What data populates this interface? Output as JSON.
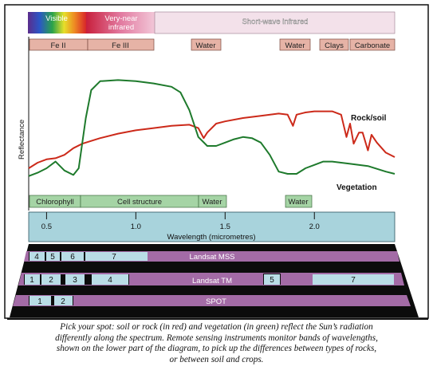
{
  "spectrum_header": {
    "regions": [
      {
        "label": "Visible"
      },
      {
        "label_lines": [
          "Very-near",
          "infrared"
        ]
      },
      {
        "label": "Short-wave infrared"
      }
    ]
  },
  "absorption_features_top": [
    "Fe II",
    "Fe III",
    "Water",
    "Water",
    "Clays",
    "Carbonate"
  ],
  "absorption_features_bottom": [
    "Chlorophyll",
    "Cell structure",
    "Water",
    "Water"
  ],
  "colors": {
    "rock_soil": "#cc2a1a",
    "vegetation": "#1e7a2c",
    "feature_box_top": "#e6b3a6",
    "feature_box_bottom": "#a5d4a5",
    "axis_band": "#a8d3dc",
    "sensor_band": "#a36ba6",
    "sensor_box": "#b9dde6"
  },
  "chart_data": {
    "type": "line",
    "title": "",
    "xlabel": "Wavelength (micrometres)",
    "ylabel": "Reflectance",
    "xlim": [
      0.4,
      2.45
    ],
    "ylim": [
      0,
      1
    ],
    "x_ticks": [
      0.5,
      1.0,
      1.5,
      2.0
    ],
    "x_tick_labels": [
      "0.5",
      "1.0",
      "1.5",
      "2.0"
    ],
    "grid": false,
    "series": [
      {
        "name": "Rock/soil",
        "x": [
          0.4,
          0.45,
          0.5,
          0.55,
          0.6,
          0.65,
          0.7,
          0.8,
          0.9,
          1.0,
          1.1,
          1.2,
          1.3,
          1.35,
          1.38,
          1.4,
          1.45,
          1.5,
          1.6,
          1.7,
          1.8,
          1.85,
          1.88,
          1.9,
          1.95,
          2.0,
          2.1,
          2.15,
          2.18,
          2.2,
          2.22,
          2.25,
          2.27,
          2.3,
          2.32,
          2.35,
          2.4,
          2.45
        ],
        "values": [
          0.1,
          0.15,
          0.18,
          0.19,
          0.22,
          0.28,
          0.32,
          0.37,
          0.41,
          0.44,
          0.46,
          0.48,
          0.49,
          0.46,
          0.37,
          0.42,
          0.5,
          0.52,
          0.55,
          0.57,
          0.59,
          0.58,
          0.48,
          0.58,
          0.6,
          0.61,
          0.61,
          0.58,
          0.38,
          0.5,
          0.32,
          0.42,
          0.42,
          0.26,
          0.4,
          0.33,
          0.24,
          0.2
        ]
      },
      {
        "name": "Vegetation",
        "x": [
          0.4,
          0.45,
          0.5,
          0.55,
          0.6,
          0.65,
          0.68,
          0.72,
          0.75,
          0.8,
          0.9,
          1.0,
          1.1,
          1.2,
          1.25,
          1.3,
          1.35,
          1.4,
          1.45,
          1.5,
          1.55,
          1.6,
          1.65,
          1.7,
          1.75,
          1.8,
          1.85,
          1.9,
          1.95,
          2.0,
          2.05,
          2.1,
          2.2,
          2.3,
          2.4,
          2.45
        ],
        "values": [
          0.03,
          0.06,
          0.1,
          0.16,
          0.08,
          0.04,
          0.1,
          0.55,
          0.8,
          0.88,
          0.89,
          0.88,
          0.86,
          0.83,
          0.78,
          0.62,
          0.38,
          0.3,
          0.3,
          0.33,
          0.36,
          0.38,
          0.37,
          0.33,
          0.22,
          0.07,
          0.05,
          0.05,
          0.1,
          0.13,
          0.16,
          0.16,
          0.14,
          0.12,
          0.07,
          0.05
        ]
      }
    ],
    "annotations": [
      "Rock/soil",
      "Vegetation"
    ]
  },
  "sensors": [
    {
      "name": "Landsat MSS",
      "bands": [
        "4",
        "5",
        "6",
        "7"
      ]
    },
    {
      "name": "Landsat TM",
      "bands": [
        "1",
        "2",
        "3",
        "4",
        "5",
        "7"
      ]
    },
    {
      "name": "SPOT",
      "bands": [
        "1",
        "2"
      ]
    }
  ],
  "caption_lines": [
    "Pick your spot: soil or rock (in red) and vegetation (in green) reflect the Sun’s radiation",
    "differently along the spectrum. Remote sensing instruments monitor bands of wavelengths,",
    "shown on the lower part of the diagram, to pick up the differences between types of rocks,",
    "or between soil and crops."
  ]
}
